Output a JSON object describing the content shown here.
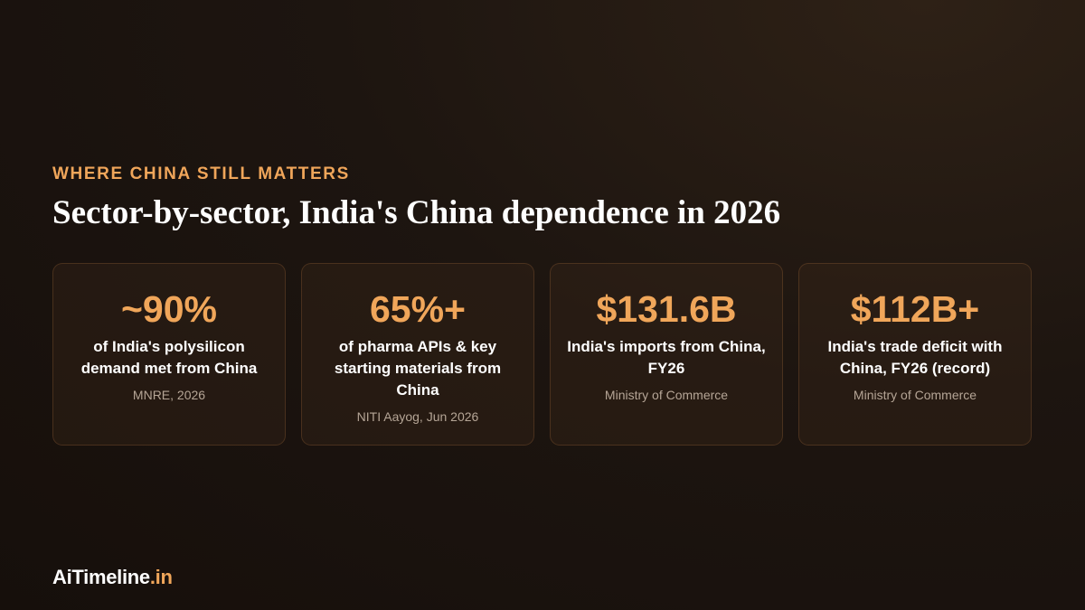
{
  "header": {
    "eyebrow": "WHERE CHINA STILL MATTERS",
    "title": "Sector-by-sector, India's China dependence in 2026"
  },
  "cards": [
    {
      "stat": "~90%",
      "description": "of India's polysilicon demand met from China",
      "source": "MNRE, 2026"
    },
    {
      "stat": "65%+",
      "description": "of pharma APIs & key starting materials from China",
      "source": "NITI Aayog, Jun 2026"
    },
    {
      "stat": "$131.6B",
      "description": "India's imports from China, FY26",
      "source": "Ministry of Commerce"
    },
    {
      "stat": "$112B+",
      "description": "India's trade deficit with China, FY26 (record)",
      "source": "Ministry of Commerce"
    }
  ],
  "footer": {
    "brand": "AiTimeline",
    "brand_suffix": ".in"
  }
}
